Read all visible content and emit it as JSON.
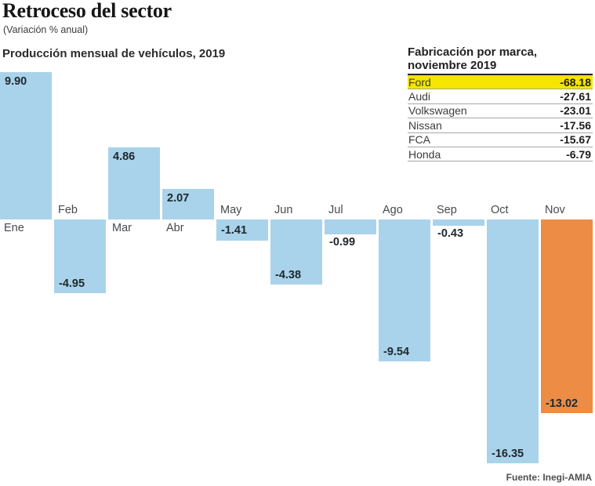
{
  "header": {
    "title": "Retroceso del sector",
    "subtitle": "(Variación % anual)"
  },
  "chart": {
    "label": "Producción mensual de vehículos, 2019"
  },
  "chart_data": {
    "type": "bar",
    "title": "Producción mensual de vehículos, 2019",
    "categories": [
      "Ene",
      "Feb",
      "Mar",
      "Abr",
      "May",
      "Jun",
      "Jul",
      "Ago",
      "Sep",
      "Oct",
      "Nov"
    ],
    "values": [
      9.9,
      -4.95,
      4.86,
      2.07,
      -1.41,
      -4.38,
      -0.99,
      -9.54,
      -0.43,
      -16.35,
      -13.02
    ],
    "value_labels": [
      "9.90",
      "-4.95",
      "4.86",
      "2.07",
      "-1.41",
      "-4.38",
      "-0.99",
      "-9.54",
      "-0.43",
      "-16.35",
      "-13.02"
    ],
    "label_positions": [
      "inside-top",
      "inside-bottom",
      "inside-top",
      "inside-top",
      "inside-middle",
      "inside-bottom",
      "below",
      "inside-bottom",
      "below",
      "inside-bottom",
      "inside-bottom"
    ],
    "highlight_index": 10,
    "bar_color": "#a9d3ea",
    "highlight_color": "#ec8c45",
    "ylim": [
      -17,
      10
    ],
    "grid": false,
    "axis_line": false,
    "legend": null
  },
  "table": {
    "title_line1": "Fabricación por marca,",
    "title_line2": "noviembre 2019",
    "highlight_color": "#f6e401",
    "rows": [
      {
        "brand": "Ford",
        "value": "-68.18",
        "highlight": true
      },
      {
        "brand": "Audi",
        "value": "-27.61",
        "highlight": false
      },
      {
        "brand": "Volkswagen",
        "value": "-23.01",
        "highlight": false
      },
      {
        "brand": "Nissan",
        "value": "-17.56",
        "highlight": false
      },
      {
        "brand": "FCA",
        "value": "-15.67",
        "highlight": false
      },
      {
        "brand": "Honda",
        "value": "-6.79",
        "highlight": false
      }
    ]
  },
  "source": "Fuente: Inegi-AMIA"
}
